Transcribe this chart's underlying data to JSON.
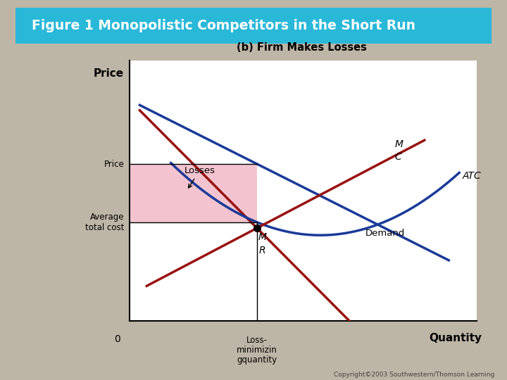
{
  "title": "Figure 1 Monopolistic Competitors in the Short Run",
  "subtitle": "(b) Firm Makes Losses",
  "bg_color": "#bdb5a6",
  "chart_bg": "#ffffff",
  "header_color": "#2ab8d8",
  "title_text_color": "#ffffff",
  "ylabel": "Price",
  "xlabel": "Quantity",
  "x0_label": "0",
  "demand_label": "Demand",
  "atc_label": "ATC",
  "mc_label_M": "M",
  "mc_label_C": "C",
  "mr_label_M": "M",
  "mr_label_R": "R",
  "losses_label": "Losses",
  "avg_total_cost_label": "Average\ntotal cost",
  "price_label": "Price",
  "loss_min_qty_label": "Loss-\nminimizin\ngquantity",
  "copyright": "Copyright©2003 Southwestern/Thomson Learning",
  "demand_color": "#1a3a99",
  "atc_color": "#1a3a99",
  "mc_color": "#991111",
  "mr_color": "#991111",
  "loss_fill_color": "#f0b0c0",
  "dot_color": "#000000",
  "line_color": "#000000",
  "xlim": [
    0,
    10
  ],
  "ylim": [
    0,
    10
  ]
}
